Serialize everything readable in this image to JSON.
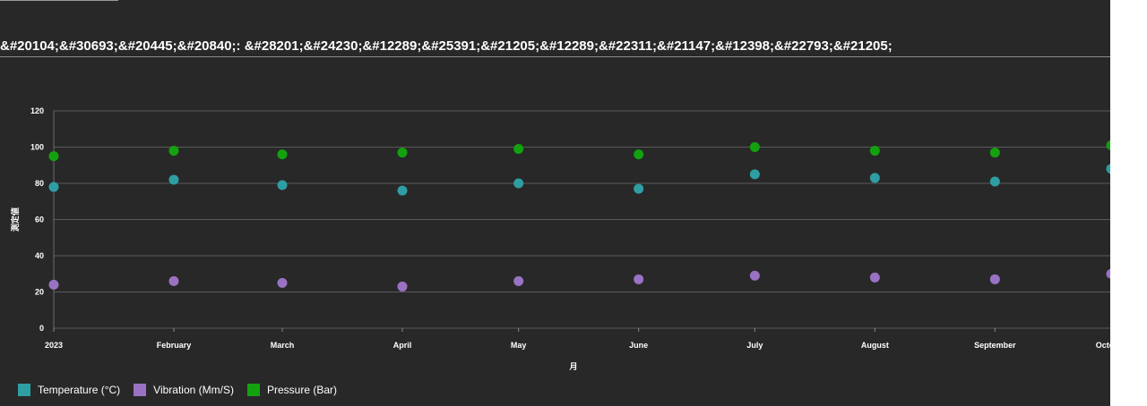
{
  "page": {
    "title": "&#20104;&#30693;&#20445;&#20840;: &#28201;&#24230;&#12289;&#25391;&#21205;&#12289;&#22311;&#21147;&#12398;&#22793;&#21205;"
  },
  "colors": {
    "background": "#282828",
    "grid": "#5a5a5a",
    "text": "#ffffff"
  },
  "chart_data": {
    "type": "scatter",
    "title": "&#20104;&#30693;&#20445;&#20840;: &#28201;&#24230;&#12289;&#25391;&#21205;&#12289;&#22311;&#21147;&#12398;&#22793;&#21205;",
    "xlabel": "月",
    "ylabel": "測定値",
    "categories": [
      "2023",
      "February",
      "March",
      "April",
      "May",
      "June",
      "July",
      "August",
      "September",
      "October"
    ],
    "x_days": [
      0,
      31,
      59,
      90,
      120,
      151,
      181,
      212,
      243,
      273
    ],
    "ylim": [
      0,
      120
    ],
    "yticks": [
      0,
      20,
      40,
      60,
      80,
      100,
      120
    ],
    "grid": true,
    "legend_position": "bottom-left",
    "series": [
      {
        "name": "Temperature (°C)",
        "color": "#2e9ea3",
        "values": [
          78,
          82,
          79,
          76,
          80,
          77,
          85,
          83,
          81,
          88
        ]
      },
      {
        "name": "Vibration (Mm/S)",
        "color": "#9a72c4",
        "values": [
          24,
          26,
          25,
          23,
          26,
          27,
          29,
          28,
          27,
          30
        ]
      },
      {
        "name": "Pressure (Bar)",
        "color": "#14a10f",
        "values": [
          95,
          98,
          96,
          97,
          99,
          96,
          100,
          98,
          97,
          101
        ]
      }
    ]
  }
}
